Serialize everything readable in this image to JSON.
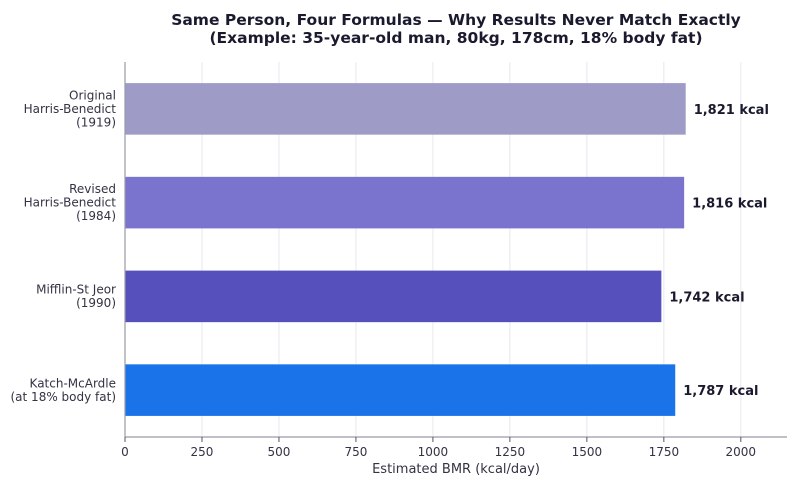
{
  "chart_data": {
    "type": "bar",
    "orientation": "horizontal",
    "title_lines": [
      "Same Person, Four Formulas — Why Results Never Match Exactly",
      "(Example: 35-year-old man, 80kg, 178cm, 18% body fat)"
    ],
    "xlabel": "Estimated BMR (kcal/day)",
    "ylabel": "",
    "xlim": [
      0,
      2150
    ],
    "xticks": [
      0,
      250,
      500,
      750,
      1000,
      1250,
      1500,
      1750,
      2000
    ],
    "grid": "vertical",
    "categories": [
      [
        "Original",
        "Harris-Benedict",
        "(1919)"
      ],
      [
        "Revised",
        "Harris-Benedict",
        "(1984)"
      ],
      [
        "Mifflin-St Jeor",
        "(1990)"
      ],
      [
        "Katch-McArdle",
        "(at 18% body fat)"
      ]
    ],
    "values": [
      1821,
      1816,
      1742,
      1787
    ],
    "value_labels": [
      "1,821 kcal",
      "1,816 kcal",
      "1,742 kcal",
      "1,787 kcal"
    ],
    "colors": [
      "#9e9cc6",
      "#7b74cf",
      "#5550bc",
      "#1a73e8"
    ]
  }
}
